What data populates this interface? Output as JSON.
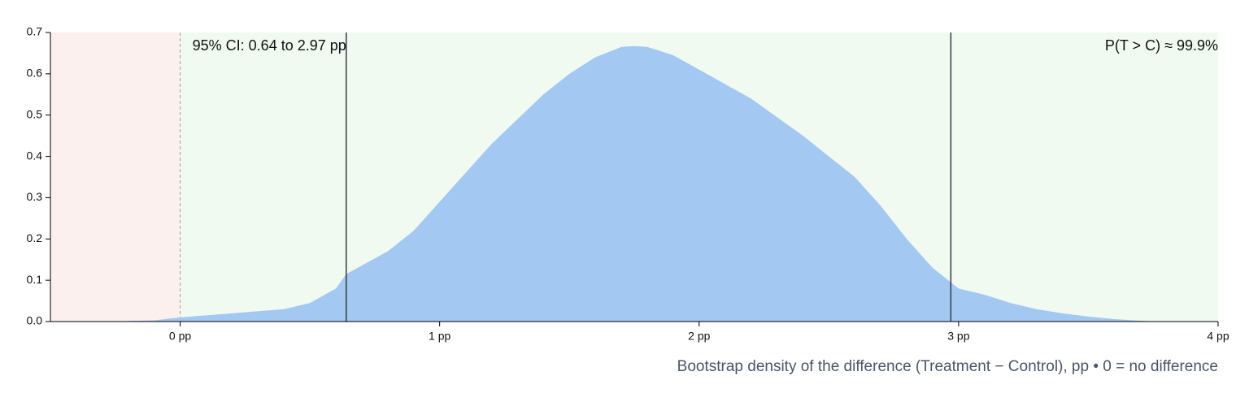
{
  "chart_data": {
    "type": "area",
    "x": [
      -0.3,
      -0.1,
      0,
      0.2,
      0.4,
      0.5,
      0.6,
      0.64,
      0.8,
      0.9,
      1.0,
      1.1,
      1.2,
      1.3,
      1.4,
      1.5,
      1.6,
      1.7,
      1.75,
      1.8,
      1.9,
      2.0,
      2.1,
      2.2,
      2.3,
      2.4,
      2.5,
      2.6,
      2.7,
      2.8,
      2.9,
      3.0,
      3.1,
      3.2,
      3.3,
      3.4,
      3.5,
      3.6,
      3.7,
      3.8
    ],
    "values": [
      0,
      0.003,
      0.01,
      0.02,
      0.03,
      0.045,
      0.08,
      0.115,
      0.17,
      0.22,
      0.29,
      0.36,
      0.43,
      0.49,
      0.55,
      0.6,
      0.64,
      0.665,
      0.667,
      0.665,
      0.645,
      0.61,
      0.575,
      0.54,
      0.495,
      0.45,
      0.4,
      0.35,
      0.28,
      0.2,
      0.13,
      0.08,
      0.065,
      0.045,
      0.03,
      0.02,
      0.012,
      0.006,
      0.002,
      0
    ],
    "color": "#a3c8f2",
    "xlim": [
      -0.5,
      4
    ],
    "ylim": [
      0,
      0.7
    ],
    "xticks": [
      {
        "value": 0,
        "label": "0 pp"
      },
      {
        "value": 1,
        "label": "1 pp"
      },
      {
        "value": 2,
        "label": "2 pp"
      },
      {
        "value": 3,
        "label": "3 pp"
      },
      {
        "value": 4,
        "label": "4 pp"
      }
    ],
    "yticks": [
      {
        "value": 0,
        "label": "0.0"
      },
      0.1,
      0.2,
      0.3,
      0.4,
      0.5,
      0.6,
      0.7
    ],
    "regions": [
      {
        "from": -0.5,
        "to": 0,
        "color": "#fcf0ef"
      },
      {
        "from": 0,
        "to": 4,
        "color": "#f0faf1"
      }
    ],
    "reference_x": 0,
    "ci": [
      0.64,
      2.97
    ],
    "ci_label": "95% CI: 0.64 to 2.97 pp",
    "probability_label": "P(T > C) ≈ 99.9%",
    "caption": "Bootstrap density of the difference (Treatment − Control), pp • 0 = no difference"
  }
}
